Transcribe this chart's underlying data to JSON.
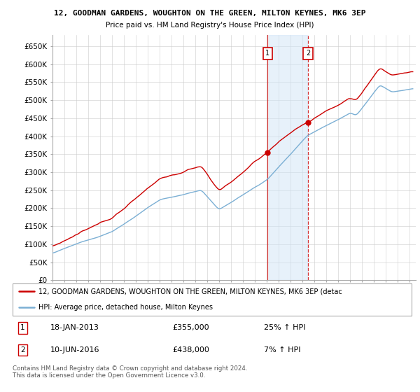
{
  "title1": "12, GOODMAN GARDENS, WOUGHTON ON THE GREEN, MILTON KEYNES, MK6 3EP",
  "title2": "Price paid vs. HM Land Registry's House Price Index (HPI)",
  "ylabel_ticks": [
    "£0",
    "£50K",
    "£100K",
    "£150K",
    "£200K",
    "£250K",
    "£300K",
    "£350K",
    "£400K",
    "£450K",
    "£500K",
    "£550K",
    "£600K",
    "£650K"
  ],
  "ytick_vals": [
    0,
    50000,
    100000,
    150000,
    200000,
    250000,
    300000,
    350000,
    400000,
    450000,
    500000,
    550000,
    600000,
    650000
  ],
  "ylim": [
    0,
    680000
  ],
  "xlim_start": 1995.0,
  "xlim_end": 2025.5,
  "transaction1_date": 2013.05,
  "transaction1_price": 355000,
  "transaction2_date": 2016.45,
  "transaction2_price": 438000,
  "legend_line1": "12, GOODMAN GARDENS, WOUGHTON ON THE GREEN, MILTON KEYNES, MK6 3EP (detac",
  "legend_line2": "HPI: Average price, detached house, Milton Keynes",
  "footer": "Contains HM Land Registry data © Crown copyright and database right 2024.\nThis data is licensed under the Open Government Licence v3.0.",
  "red_color": "#cc0000",
  "blue_color": "#7bafd4",
  "shade_color": "#d0e4f7",
  "vline_solid_color": "#cc0000",
  "vline_dash_color": "#cc0000",
  "background_color": "#ffffff",
  "grid_color": "#cccccc"
}
